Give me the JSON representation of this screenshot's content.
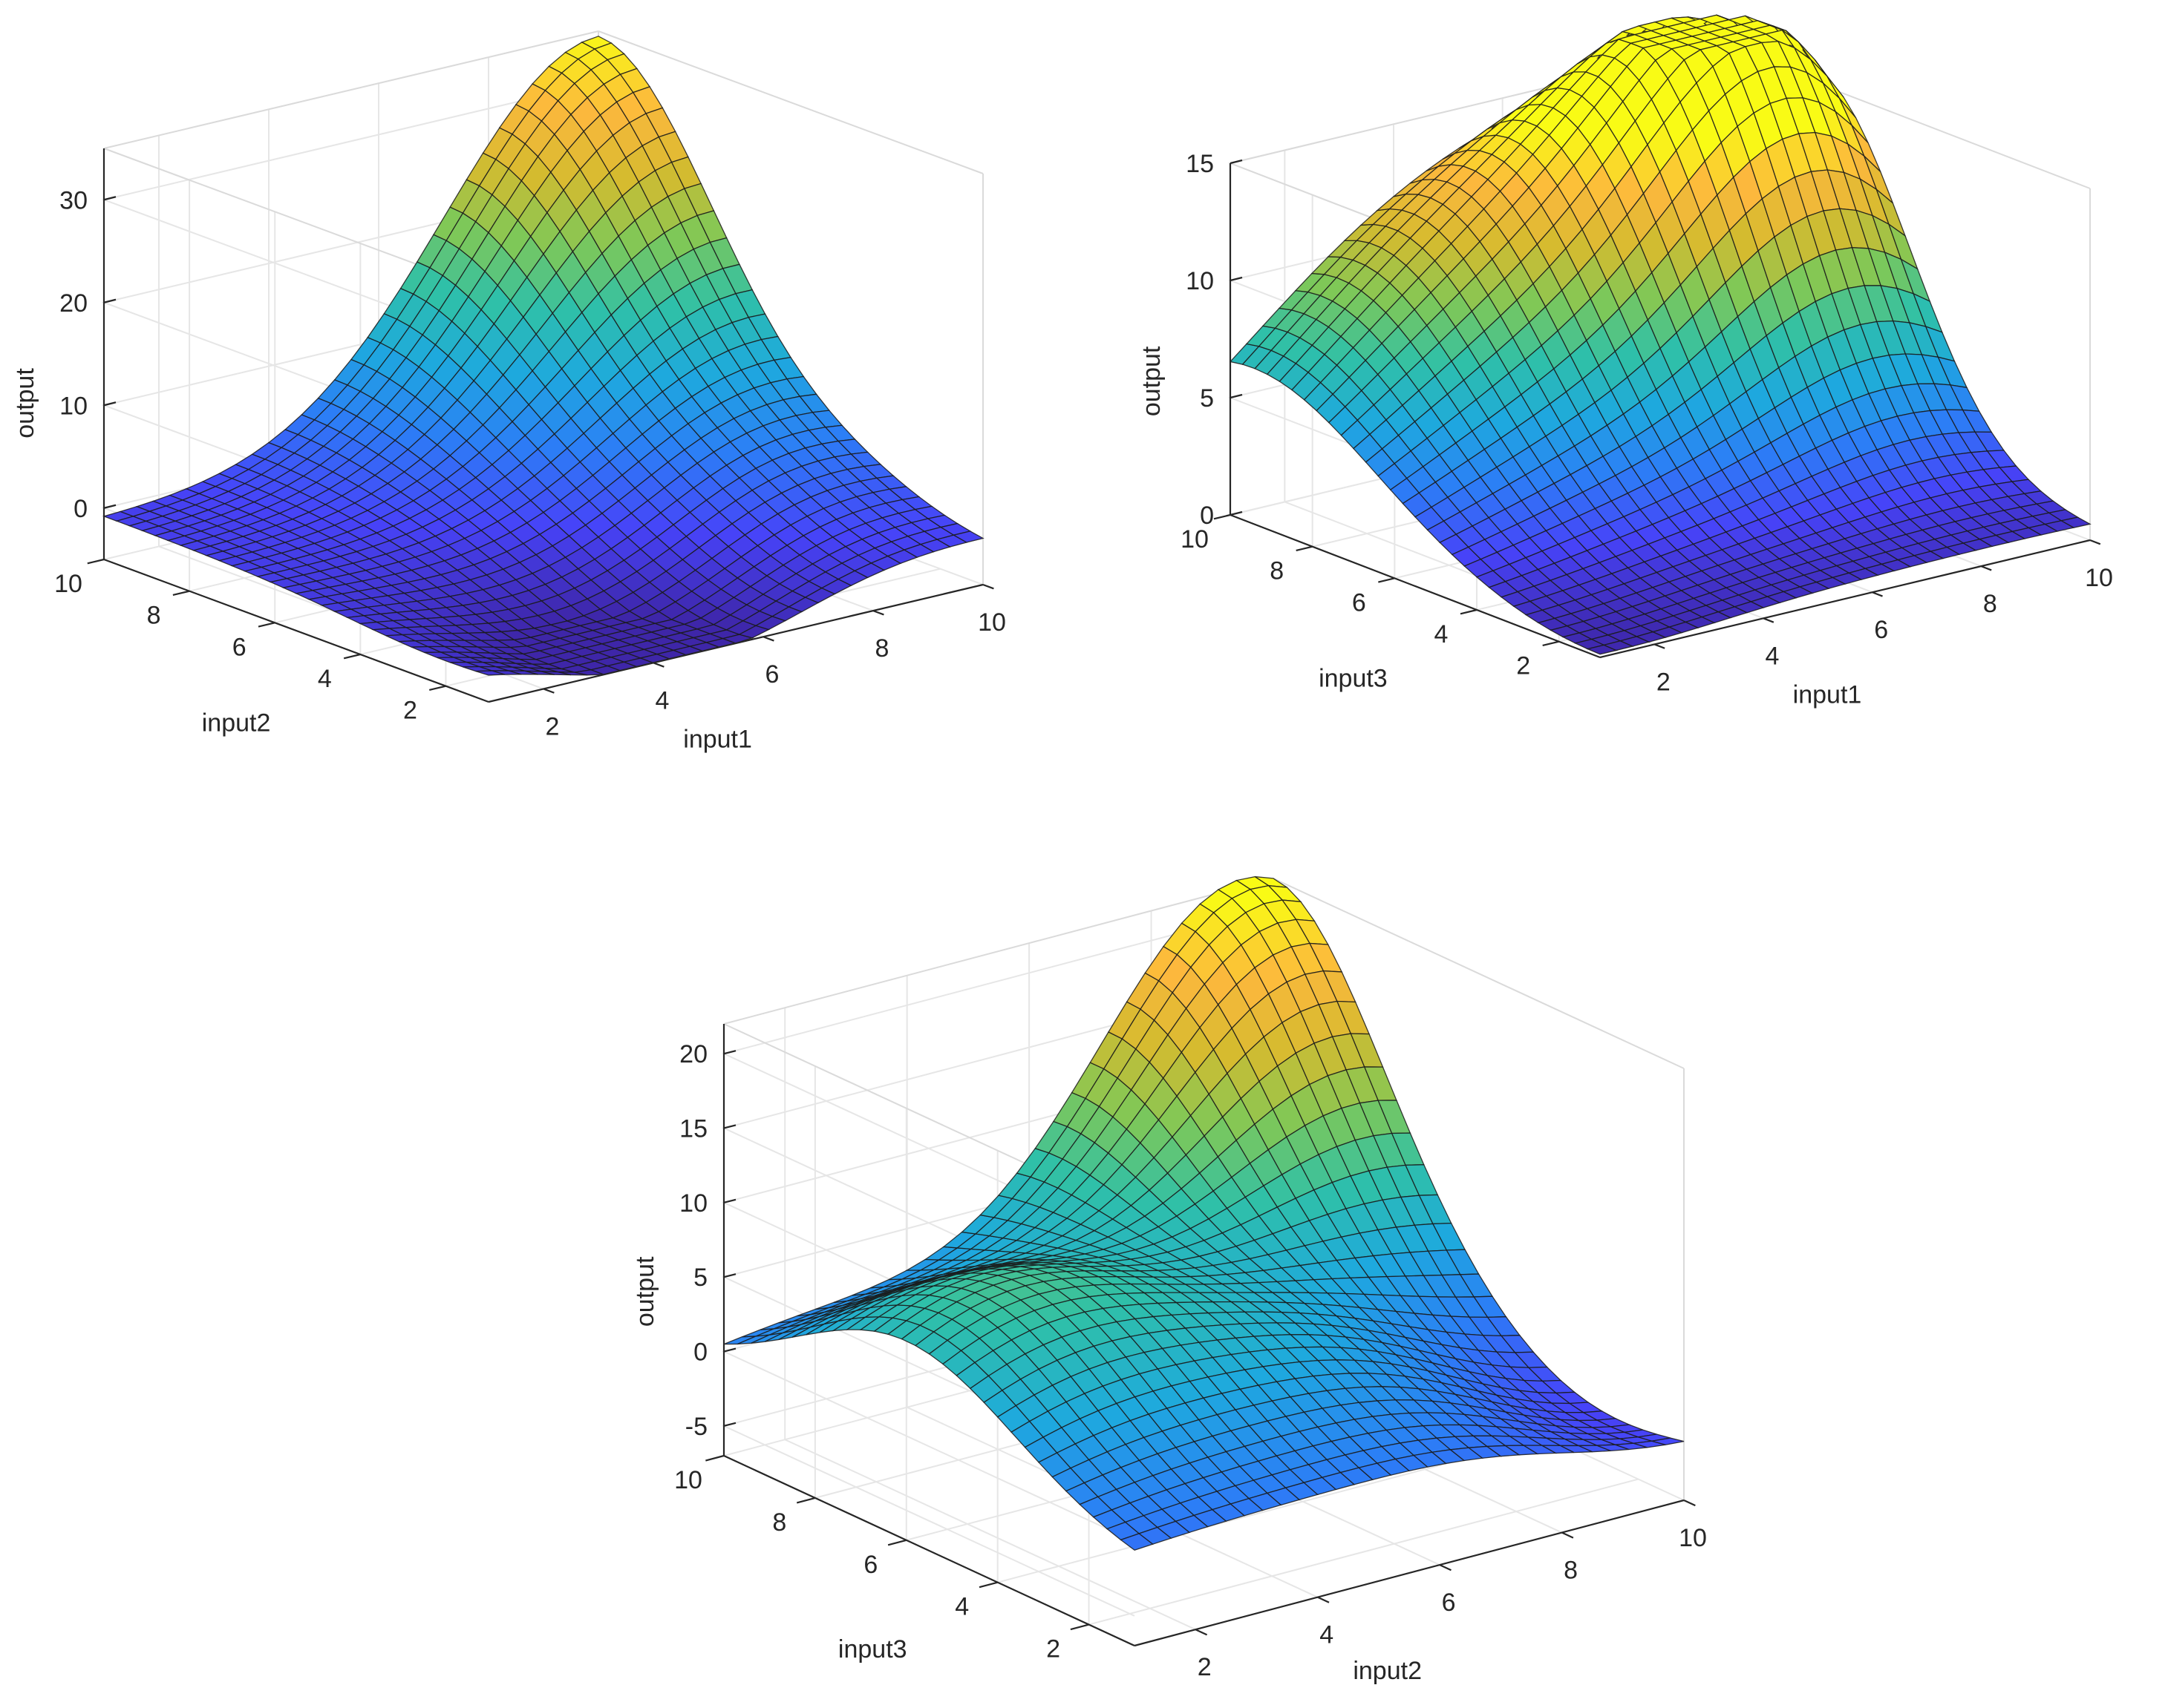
{
  "figure": {
    "background": "#ffffff",
    "colormap": "parula",
    "colormap_stops": [
      "#3e26a8",
      "#4743f8",
      "#2c7ef6",
      "#1ea9de",
      "#2fc0a8",
      "#7fc857",
      "#d5bb2f",
      "#fcb83d",
      "#f9fb15"
    ]
  },
  "chart_data": [
    {
      "type": "surface",
      "id": "plot1",
      "xlabel": "input1",
      "ylabel": "input2",
      "zlabel": "output",
      "xlim": [
        1,
        10
      ],
      "ylim": [
        1,
        10
      ],
      "zlim": [
        -5,
        35
      ],
      "xticks": [
        2,
        4,
        6,
        8,
        10
      ],
      "yticks": [
        2,
        4,
        6,
        8,
        10
      ],
      "zticks": [
        0,
        10,
        20,
        30
      ],
      "grid": true,
      "mesh_size": 30,
      "surface_estimate": {
        "base": -1.0,
        "peaks": [
          {
            "x": 10,
            "y": 10,
            "height": 35.5,
            "width": 2.8
          },
          {
            "x": 4.5,
            "y": 2.0,
            "height": -5.5,
            "width": 2.2
          },
          {
            "x": 8.5,
            "y": 4.0,
            "height": 3.0,
            "width": 1.8
          }
        ]
      }
    },
    {
      "type": "surface",
      "id": "plot2",
      "xlabel": "input1",
      "ylabel": "input3",
      "zlabel": "output",
      "xlim": [
        1,
        10
      ],
      "ylim": [
        1,
        10
      ],
      "zlim": [
        0,
        15
      ],
      "xticks": [
        2,
        4,
        6,
        8,
        10
      ],
      "yticks": [
        2,
        4,
        6,
        8,
        10
      ],
      "zticks": [
        0,
        5,
        10,
        15
      ],
      "grid": true,
      "mesh_size": 30,
      "surface_estimate": {
        "base": 0.5,
        "peaks": [
          {
            "x": 9.0,
            "y": 7.5,
            "height": 14.0,
            "width": 2.2
          },
          {
            "x": 3.5,
            "y": 9.5,
            "height": 8.0,
            "width": 3.0
          },
          {
            "x": 6.5,
            "y": 9.0,
            "height": 5.5,
            "width": 2.5
          },
          {
            "x": 1.5,
            "y": 1.5,
            "height": -0.5,
            "width": 2.0
          }
        ]
      }
    },
    {
      "type": "surface",
      "id": "plot3",
      "xlabel": "input2",
      "ylabel": "input3",
      "zlabel": "output",
      "xlim": [
        1,
        10
      ],
      "ylim": [
        1,
        10
      ],
      "zlim": [
        -7,
        22
      ],
      "xticks": [
        2,
        4,
        6,
        8,
        10
      ],
      "yticks": [
        2,
        4,
        6,
        8,
        10
      ],
      "zticks": [
        -5,
        0,
        5,
        10,
        15,
        20
      ],
      "grid": true,
      "mesh_size": 30,
      "surface_estimate": {
        "base": -1.5,
        "peaks": [
          {
            "x": 9.5,
            "y": 10,
            "height": 24.0,
            "width": 2.4
          },
          {
            "x": 2.5,
            "y": 6.0,
            "height": 9.5,
            "width": 2.4
          },
          {
            "x": 6.5,
            "y": 4.0,
            "height": 3.5,
            "width": 2.0
          },
          {
            "x": 10,
            "y": 3.0,
            "height": -3.0,
            "width": 2.0
          }
        ]
      }
    }
  ]
}
